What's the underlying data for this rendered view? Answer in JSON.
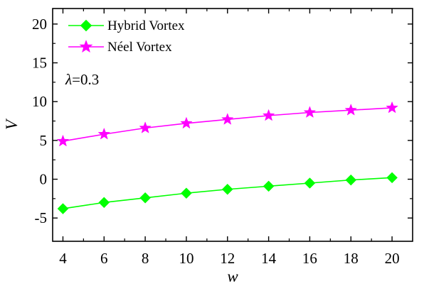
{
  "chart_data": {
    "type": "line",
    "xlabel": "w",
    "ylabel": "V",
    "xlim": [
      3.5,
      21
    ],
    "ylim": [
      -8,
      22
    ],
    "x_ticks": [
      4,
      6,
      8,
      10,
      12,
      14,
      16,
      18,
      20
    ],
    "y_ticks": [
      -5,
      0,
      5,
      10,
      15,
      20
    ],
    "y_tick_labels": [
      "-5",
      "0",
      "5",
      "10",
      "15",
      "20"
    ],
    "annotation": {
      "symbol": "λ",
      "text": "=0.3"
    },
    "legend_position": "top-left",
    "grid": false,
    "series": [
      {
        "name": "Hybrid Vortex",
        "color": "#00ff00",
        "marker": "diamond",
        "x": [
          4,
          6,
          8,
          10,
          12,
          14,
          16,
          18,
          20
        ],
        "y": [
          -3.8,
          -3.0,
          -2.4,
          -1.8,
          -1.3,
          -0.9,
          -0.5,
          -0.1,
          0.2
        ]
      },
      {
        "name": "Néel Vortex",
        "color": "#ff00ff",
        "marker": "star",
        "x": [
          4,
          6,
          8,
          10,
          12,
          14,
          16,
          18,
          20
        ],
        "y": [
          4.9,
          5.8,
          6.6,
          7.2,
          7.7,
          8.2,
          8.6,
          8.9,
          9.2
        ]
      }
    ]
  }
}
